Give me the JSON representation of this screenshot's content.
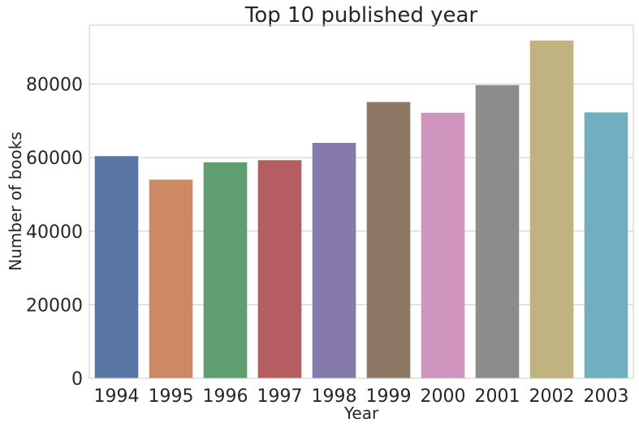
{
  "chart_data": {
    "type": "bar",
    "title": "Top 10 published year",
    "xlabel": "Year",
    "ylabel": "Number of books",
    "categories": [
      "1994",
      "1995",
      "1996",
      "1997",
      "1998",
      "1999",
      "2000",
      "2001",
      "2002",
      "2003"
    ],
    "values": [
      60400,
      54000,
      58700,
      59300,
      64000,
      75100,
      72200,
      79700,
      91800,
      72300
    ],
    "colors": [
      "#5875a4",
      "#cc8963",
      "#5f9e6e",
      "#b55d60",
      "#857aab",
      "#8d7866",
      "#d095bf",
      "#8c8c8c",
      "#c1b37f",
      "#71aec0"
    ],
    "ylim": [
      0,
      96000
    ],
    "yticks": [
      0,
      20000,
      40000,
      60000,
      80000
    ],
    "grid": "horizontal",
    "legend": "none"
  }
}
